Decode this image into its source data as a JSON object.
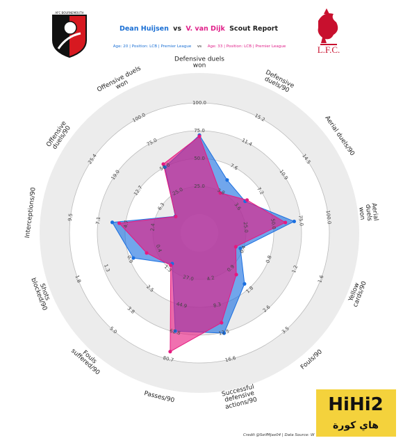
{
  "header": {
    "home_badge": "AFC BOURNEMOUTH",
    "away_badge": "L.F.C.",
    "title_vs": "vs",
    "title_suffix": "Scout Report",
    "subtitle1": "Age: 20 | Position: LCB | Premier League",
    "subtitle_vs": "vs",
    "subtitle2": "Age: 33 | Position: LCB | Premier League"
  },
  "chart_data": {
    "type": "radar",
    "categories": [
      "Defensive duels\nwon",
      "Defensive\nduels/90",
      "Aerial duels/90",
      "Aerial duels\nwon",
      "Yellow cards/90",
      "Fouls/90",
      "Successful\ndefensive\nactions/90",
      "Passes/90",
      "Fouls\nsuffered/90",
      "Shots\nblocked/90",
      "Interceptions/90",
      "Offensive\nduels/90",
      "Offensive duels\nwon"
    ],
    "ranges": [
      [
        0,
        100
      ],
      [
        0,
        15.2
      ],
      [
        0,
        14.5
      ],
      [
        0,
        100
      ],
      [
        0,
        1.6
      ],
      [
        0,
        3.5
      ],
      [
        0,
        16.6
      ],
      [
        9.1,
        80.7
      ],
      [
        0,
        5.0
      ],
      [
        0,
        1.8
      ],
      [
        0,
        9.5
      ],
      [
        0,
        25.4
      ],
      [
        0,
        100
      ]
    ],
    "ticks": [
      [
        {
          "value": 25,
          "label": "25.0"
        },
        {
          "value": 50,
          "label": "50.0"
        },
        {
          "value": 75,
          "label": "75.0"
        },
        {
          "value": 100,
          "label": "100.0"
        }
      ],
      [
        3.8,
        7.6,
        11.4,
        15.2
      ],
      [
        3.6,
        7.2,
        10.9,
        14.5
      ],
      [
        {
          "value": 25,
          "label": "25.0"
        },
        {
          "value": 50,
          "label": "50.0"
        },
        {
          "value": 75,
          "label": "75.0"
        },
        {
          "value": 100,
          "label": "100.0"
        }
      ],
      [
        0.4,
        0.8,
        1.2,
        1.6
      ],
      [
        0.9,
        1.8,
        2.6,
        3.5
      ],
      [
        4.2,
        8.3,
        12.5,
        16.6
      ],
      [
        {
          "value": 27,
          "label": "27.0"
        },
        44.9,
        62.8,
        80.7
      ],
      [
        1.3,
        2.5,
        3.8,
        {
          "value": 5,
          "label": "5.0"
        }
      ],
      [
        0.4,
        0.9,
        1.3,
        1.8
      ],
      [
        2.4,
        4.7,
        7.1,
        9.5
      ],
      [
        6.3,
        12.7,
        {
          "value": 19,
          "label": "19.0"
        },
        25.4
      ],
      [
        {
          "value": 25,
          "label": "25.0"
        },
        {
          "value": 50,
          "label": "50.0"
        },
        {
          "value": 75,
          "label": "75.0"
        },
        {
          "value": 100,
          "label": "100.0"
        }
      ]
    ],
    "series": [
      {
        "name": "Dean Huijsen",
        "color": "#1a6fe0",
        "values": [
          71,
          5.6,
          4.8,
          69,
          0.36,
          1.55,
          12.6,
          62.1,
          1.0,
          0.84,
          5.9,
          2.4,
          50
        ]
      },
      {
        "name": "V. van Dijk",
        "color": "#e6197f",
        "values": [
          70,
          3.6,
          5.1,
          61,
          0.29,
          1.16,
          11.0,
          75.7,
          1.1,
          0.61,
          5.3,
          2.3,
          53
        ]
      }
    ]
  },
  "footer": {
    "credit": "Credit @SeifMjax04 | Data Source: W"
  },
  "watermark": {
    "logo": "HiHi2",
    "text": "هاي كورة"
  }
}
